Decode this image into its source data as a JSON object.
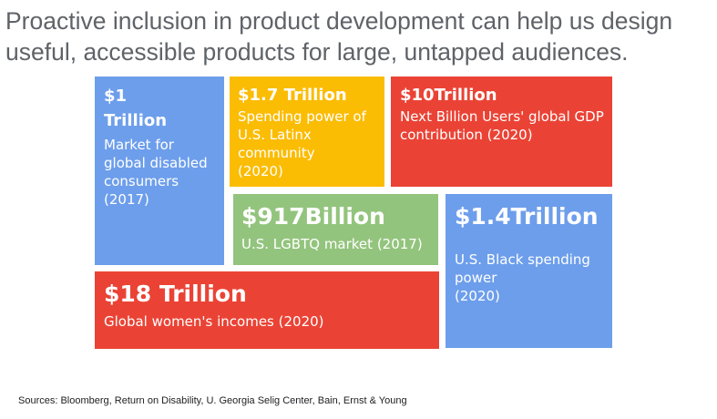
{
  "headline": "Proactive inclusion in product development can help us design useful, accessible products for large, untapped audiences.",
  "colors": {
    "blue": "#6d9eeb",
    "yellow": "#fbbc04",
    "red": "#ea4335",
    "green": "#93c47d",
    "headline_gray": "#5f6368"
  },
  "boxes": {
    "disabled": {
      "color": "#6d9eeb",
      "amount_line1": "$1",
      "amount_line2": "Trillion",
      "desc": "Market for global disabled consumers (2017)"
    },
    "latinx": {
      "color": "#fbbc04",
      "amount": "$1.7 Trillion",
      "desc_line1": "Spending power of U.S. Latinx community",
      "desc_line2": "(2020)"
    },
    "nbu": {
      "color": "#ea4335",
      "amount": "$10Trillion",
      "desc": "Next Billion Users' global GDP contribution (2020)"
    },
    "lgbtq": {
      "color": "#93c47d",
      "amount": "$917Billion",
      "desc": "U.S. LGBTQ market (2017)"
    },
    "black": {
      "color": "#6d9eeb",
      "amount": "$1.4Trillion",
      "desc_line1": "U.S. Black spending power",
      "desc_line2": "(2020)"
    },
    "women": {
      "color": "#ea4335",
      "amount": "$18 Trillion",
      "desc": "Global women's incomes (2020)"
    }
  },
  "sources": "Sources:  Bloomberg, Return on Disability, U. Georgia Selig Center,  Bain, Ernst & Young"
}
